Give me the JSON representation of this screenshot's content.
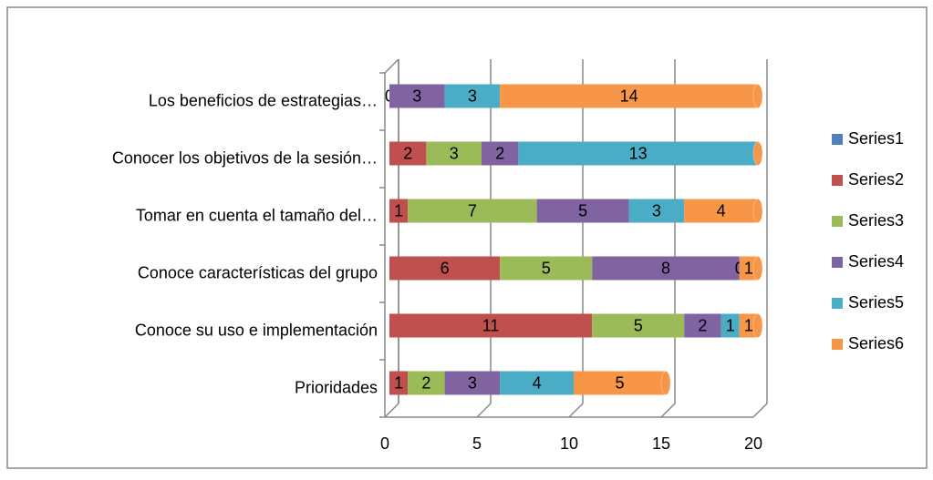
{
  "chart_data": {
    "type": "bar",
    "orientation": "horizontal",
    "stacked": true,
    "categories": [
      "Los beneficios de estrategias…",
      "Conocer los objetivos de la sesión…",
      "Tomar en cuenta el tamaño del…",
      "Conoce características del grupo",
      "Conoce su uso e implementación",
      "Prioridades"
    ],
    "series": [
      {
        "name": "Series1",
        "color": "#4f81bd",
        "values": [
          null,
          null,
          null,
          null,
          null,
          null
        ]
      },
      {
        "name": "Series2",
        "color": "#c0504d",
        "values": [
          null,
          2,
          1,
          6,
          11,
          1
        ]
      },
      {
        "name": "Series3",
        "color": "#9bbb59",
        "values": [
          0,
          3,
          7,
          5,
          5,
          2
        ]
      },
      {
        "name": "Series4",
        "color": "#8064a2",
        "values": [
          3,
          2,
          5,
          8,
          2,
          3
        ]
      },
      {
        "name": "Series5",
        "color": "#4bacc6",
        "values": [
          3,
          13,
          3,
          0,
          1,
          4
        ]
      },
      {
        "name": "Series6",
        "color": "#f79646",
        "values": [
          14,
          0,
          4,
          1,
          1,
          5
        ]
      }
    ],
    "xlim": [
      0,
      20
    ],
    "xticks": [
      0,
      5,
      10,
      15,
      20
    ],
    "grid": true,
    "legend": "right"
  }
}
